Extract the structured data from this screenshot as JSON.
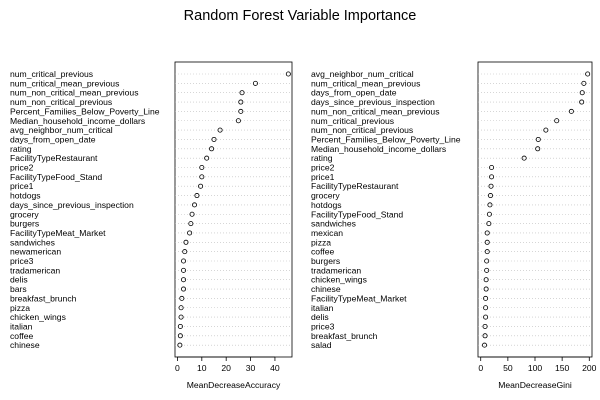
{
  "title": "Random Forest Variable Importance",
  "chart_data": [
    {
      "type": "scatter",
      "xlabel": "MeanDecreaseAccuracy",
      "xticks": [
        0,
        10,
        20,
        30,
        40
      ],
      "xlim": [
        -1,
        47
      ],
      "grid": "dotted horizontal",
      "categories": [
        "num_critical_previous",
        "num_critical_mean_previous",
        "num_non_critical_mean_previous",
        "num_non_critical_previous",
        "Percent_Families_Below_Poverty_Line",
        "Median_household_income_dollars",
        "avg_neighbor_num_critical",
        "days_from_open_date",
        "rating",
        "FacilityTypeRestaurant",
        "price2",
        "FacilityTypeFood_Stand",
        "price1",
        "hotdogs",
        "days_since_previous_inspection",
        "grocery",
        "burgers",
        "FacilityTypeMeat_Market",
        "sandwiches",
        "newamerican",
        "price3",
        "tradamerican",
        "delis",
        "bars",
        "breakfast_brunch",
        "pizza",
        "chicken_wings",
        "italian",
        "coffee",
        "chinese"
      ],
      "values": [
        45.5,
        32,
        26.5,
        26,
        26,
        25,
        17.5,
        15,
        14,
        12,
        10,
        10,
        9.5,
        8,
        7,
        6,
        5.5,
        5,
        3.5,
        3,
        2.5,
        2.5,
        2.5,
        2.5,
        1.8,
        1.5,
        1.5,
        1.2,
        1.2,
        1
      ]
    },
    {
      "type": "scatter",
      "xlabel": "MeanDecreaseGini",
      "xticks": [
        0,
        50,
        100,
        150,
        200
      ],
      "xlim": [
        -5,
        205
      ],
      "grid": "dotted horizontal",
      "categories": [
        "avg_neighbor_num_critical",
        "num_critical_mean_previous",
        "days_from_open_date",
        "days_since_previous_inspection",
        "num_non_critical_mean_previous",
        "num_critical_previous",
        "num_non_critical_previous",
        "Percent_Families_Below_Poverty_Line",
        "Median_household_income_dollars",
        "rating",
        "price2",
        "price1",
        "FacilityTypeRestaurant",
        "grocery",
        "hotdogs",
        "FacilityTypeFood_Stand",
        "sandwiches",
        "mexican",
        "pizza",
        "coffee",
        "burgers",
        "tradamerican",
        "chicken_wings",
        "chinese",
        "FacilityTypeMeat_Market",
        "italian",
        "delis",
        "price3",
        "breakfast_brunch",
        "salad"
      ],
      "values": [
        197,
        190,
        187,
        186,
        167,
        140,
        120,
        106,
        105,
        80,
        20,
        20,
        19,
        18,
        17,
        16,
        15,
        12,
        12,
        12,
        11,
        11,
        10,
        10,
        9,
        9,
        9,
        8,
        8,
        7
      ]
    }
  ]
}
